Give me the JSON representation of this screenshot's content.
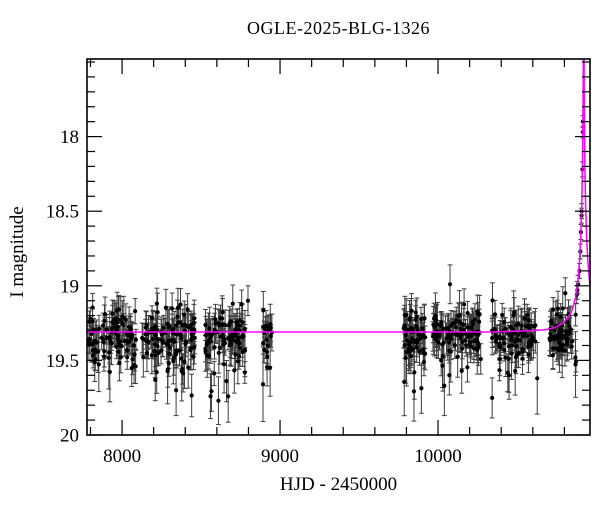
{
  "figure": {
    "title": "OGLE-2025-BLG-1326",
    "x_axis_label": "HJD - 2450000",
    "y_axis_label": "I magnitude"
  },
  "chart_data": {
    "type": "scatter",
    "title": "OGLE-2025-BLG-1326",
    "xlabel": "HJD - 2450000",
    "ylabel": "I magnitude",
    "x_range": [
      7778,
      10962
    ],
    "y_range_mag": [
      17.48,
      20.0
    ],
    "y_inverted_magnitude_axis": true,
    "grid": false,
    "legend": "none",
    "x_major_ticks": [
      8000,
      9000,
      10000
    ],
    "x_major_tick_labels": [
      "8000",
      "9000",
      "10000"
    ],
    "x_minor_tick_step": 200,
    "y_major_ticks": [
      18,
      18.5,
      19,
      19.5,
      20
    ],
    "y_major_tick_labels": [
      "18",
      "18.5",
      "19",
      "19.5",
      "20"
    ],
    "y_minor_tick_step": 0.1,
    "colors": {
      "background": "#ffffff",
      "frame": "#000000",
      "data_points": "#000000",
      "error_bars": "#3d3d3d",
      "model_curve": "#ff00ff"
    },
    "baseline_I_mag": 19.31,
    "observing_seasons": [
      {
        "t_start": 7785,
        "t_end": 8089,
        "n_points": 95,
        "mean_mag": 19.33,
        "scatter_mag": 0.085
      },
      {
        "t_start": 8127,
        "t_end": 8462,
        "n_points": 115,
        "mean_mag": 19.33,
        "scatter_mag": 0.085
      },
      {
        "t_start": 8525,
        "t_end": 8778,
        "n_points": 90,
        "mean_mag": 19.33,
        "scatter_mag": 0.085
      },
      {
        "t_start": 8892,
        "t_end": 8949,
        "n_points": 20,
        "mean_mag": 19.33,
        "scatter_mag": 0.085
      },
      {
        "t_start": 9778,
        "t_end": 9918,
        "n_points": 60,
        "mean_mag": 19.33,
        "scatter_mag": 0.085
      },
      {
        "t_start": 9962,
        "t_end": 10272,
        "n_points": 105,
        "mean_mag": 19.33,
        "scatter_mag": 0.085
      },
      {
        "t_start": 10342,
        "t_end": 10627,
        "n_points": 95,
        "mean_mag": 19.33,
        "scatter_mag": 0.085
      },
      {
        "t_start": 10696,
        "t_end": 10880,
        "n_points": 70,
        "mean_mag": 19.32,
        "scatter_mag": 0.085
      }
    ],
    "outlier_points": [
      {
        "t": 8210,
        "mag": 19.63,
        "err": 0.14
      },
      {
        "t": 8290,
        "mag": 19.56,
        "err": 0.12
      },
      {
        "t": 8342,
        "mag": 19.7,
        "err": 0.17
      },
      {
        "t": 8560,
        "mag": 19.74,
        "err": 0.15
      },
      {
        "t": 8610,
        "mag": 19.77,
        "err": 0.16
      },
      {
        "t": 8797,
        "mag": 19.1,
        "err": 0.1
      },
      {
        "t": 8892,
        "mag": 19.66,
        "err": 0.25
      },
      {
        "t": 9850,
        "mag": 19.58,
        "err": 0.18
      },
      {
        "t": 10040,
        "mag": 19.67,
        "err": 0.2
      },
      {
        "t": 10076,
        "mag": 18.99,
        "err": 0.13
      },
      {
        "t": 10150,
        "mag": 19.57,
        "err": 0.15
      },
      {
        "t": 10450,
        "mag": 19.6,
        "err": 0.16
      },
      {
        "t": 10628,
        "mag": 19.62,
        "err": 0.24
      }
    ],
    "event_rise_points": [
      {
        "t": 10878,
        "mag": 19.06,
        "err": 0.06
      },
      {
        "t": 10882,
        "mag": 19.03,
        "err": 0.06
      },
      {
        "t": 10886,
        "mag": 18.99,
        "err": 0.06
      },
      {
        "t": 10896,
        "mag": 18.9,
        "err": 0.05
      },
      {
        "t": 10901,
        "mag": 18.77,
        "err": 0.05
      },
      {
        "t": 10904.5,
        "mag": 18.64,
        "err": 0.05
      },
      {
        "t": 10908.4,
        "mag": 18.53,
        "err": 0.05
      },
      {
        "t": 10908.8,
        "mag": 18.5,
        "err": 0.05
      },
      {
        "t": 10914,
        "mag": 18.22,
        "err": 0.05
      },
      {
        "t": 10916.9,
        "mag": 17.97,
        "err": 0.04
      },
      {
        "t": 10917.3,
        "mag": 17.9,
        "err": 0.04
      }
    ],
    "model_curve_points": [
      [
        7778,
        19.31
      ],
      [
        8500,
        19.31
      ],
      [
        9200,
        19.31
      ],
      [
        9900,
        19.31
      ],
      [
        10300,
        19.31
      ],
      [
        10500,
        19.305
      ],
      [
        10600,
        19.3
      ],
      [
        10680,
        19.295
      ],
      [
        10740,
        19.28
      ],
      [
        10790,
        19.25
      ],
      [
        10825,
        19.21
      ],
      [
        10850,
        19.16
      ],
      [
        10870,
        19.08
      ],
      [
        10885,
        18.97
      ],
      [
        10896,
        18.83
      ],
      [
        10904,
        18.66
      ],
      [
        10910,
        18.45
      ],
      [
        10914,
        18.22
      ],
      [
        10917,
        17.95
      ],
      [
        10919,
        17.65
      ],
      [
        10920,
        17.45
      ],
      [
        10921,
        17.1
      ],
      [
        10922,
        16.9
      ],
      [
        10923,
        17.1
      ],
      [
        10924,
        17.45
      ],
      [
        10925,
        17.65
      ],
      [
        10927,
        17.95
      ],
      [
        10930,
        18.22
      ],
      [
        10934,
        18.45
      ],
      [
        10940,
        18.66
      ],
      [
        10948,
        18.83
      ],
      [
        10959,
        18.97
      ],
      [
        10962,
        19.0
      ]
    ]
  }
}
